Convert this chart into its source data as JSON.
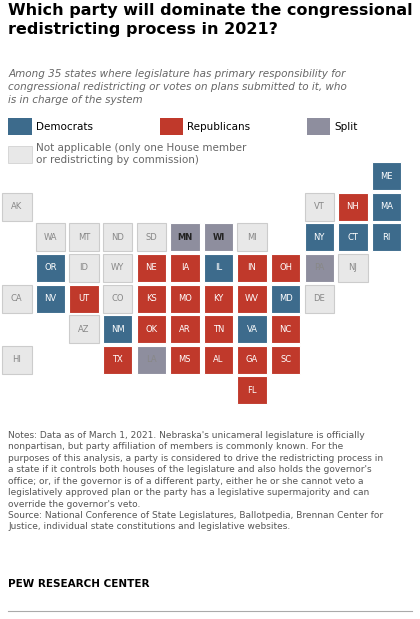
{
  "title": "Which party will dominate the congressional\nredistricting process in 2021?",
  "subtitle": "Among 35 states where legislature has primary responsibility for\ncongressional redistricting or votes on plans submitted to it, who\nis in charge of the system",
  "notes": "Notes: Data as of March 1, 2021. Nebraska's unicameral legislature is officially\nnonpartisan, but party affiliation of members is commonly known. For the\npurposes of this analysis, a party is considered to drive the redistricting process in\na state if it controls both houses of the legislature and also holds the governor's\noffice; or, if the governor is of a different party, either he or she cannot veto a\nlegislatively approved plan or the party has a legislative supermajority and can\noverride the governor's veto.\nSource: National Conference of State Legislatures, Ballotpedia, Brennan Center for\nJustice, individual state constitutions and legislative websites.",
  "source_label": "PEW RESEARCH CENTER",
  "colors": {
    "D": "#3d6b8c",
    "R": "#c0392b",
    "S": "#8e8e9e",
    "N": "#e8e8e8"
  },
  "states": [
    {
      "abbr": "AK",
      "col": 0,
      "row": 0,
      "party": "N"
    },
    {
      "abbr": "VT",
      "col": 9,
      "row": 0,
      "party": "N"
    },
    {
      "abbr": "NH",
      "col": 10,
      "row": 0,
      "party": "R"
    },
    {
      "abbr": "MA",
      "col": 11,
      "row": 0,
      "party": "D"
    },
    {
      "abbr": "ME",
      "col": 11,
      "row": -1,
      "party": "D"
    },
    {
      "abbr": "WA",
      "col": 1,
      "row": 1,
      "party": "N"
    },
    {
      "abbr": "MT",
      "col": 2,
      "row": 1,
      "party": "N"
    },
    {
      "abbr": "ND",
      "col": 3,
      "row": 1,
      "party": "N"
    },
    {
      "abbr": "SD",
      "col": 4,
      "row": 1,
      "party": "N"
    },
    {
      "abbr": "MN",
      "col": 5,
      "row": 1,
      "party": "S"
    },
    {
      "abbr": "WI",
      "col": 6,
      "row": 1,
      "party": "S"
    },
    {
      "abbr": "MI",
      "col": 7,
      "row": 1,
      "party": "N"
    },
    {
      "abbr": "NY",
      "col": 9,
      "row": 1,
      "party": "D"
    },
    {
      "abbr": "CT",
      "col": 10,
      "row": 1,
      "party": "D"
    },
    {
      "abbr": "RI",
      "col": 11,
      "row": 1,
      "party": "D"
    },
    {
      "abbr": "OR",
      "col": 1,
      "row": 2,
      "party": "D"
    },
    {
      "abbr": "ID",
      "col": 2,
      "row": 2,
      "party": "N"
    },
    {
      "abbr": "WY",
      "col": 3,
      "row": 2,
      "party": "N"
    },
    {
      "abbr": "NE",
      "col": 4,
      "row": 2,
      "party": "R"
    },
    {
      "abbr": "IA",
      "col": 5,
      "row": 2,
      "party": "R"
    },
    {
      "abbr": "IL",
      "col": 6,
      "row": 2,
      "party": "D"
    },
    {
      "abbr": "IN",
      "col": 7,
      "row": 2,
      "party": "R"
    },
    {
      "abbr": "OH",
      "col": 8,
      "row": 2,
      "party": "R"
    },
    {
      "abbr": "PA",
      "col": 9,
      "row": 2,
      "party": "S"
    },
    {
      "abbr": "NJ",
      "col": 10,
      "row": 2,
      "party": "N"
    },
    {
      "abbr": "CA",
      "col": 0,
      "row": 3,
      "party": "N"
    },
    {
      "abbr": "NV",
      "col": 1,
      "row": 3,
      "party": "D"
    },
    {
      "abbr": "UT",
      "col": 2,
      "row": 3,
      "party": "R"
    },
    {
      "abbr": "CO",
      "col": 3,
      "row": 3,
      "party": "N"
    },
    {
      "abbr": "KS",
      "col": 4,
      "row": 3,
      "party": "R"
    },
    {
      "abbr": "MO",
      "col": 5,
      "row": 3,
      "party": "R"
    },
    {
      "abbr": "KY",
      "col": 6,
      "row": 3,
      "party": "R"
    },
    {
      "abbr": "WV",
      "col": 7,
      "row": 3,
      "party": "R"
    },
    {
      "abbr": "MD",
      "col": 8,
      "row": 3,
      "party": "D"
    },
    {
      "abbr": "DE",
      "col": 9,
      "row": 3,
      "party": "N"
    },
    {
      "abbr": "AZ",
      "col": 2,
      "row": 4,
      "party": "N"
    },
    {
      "abbr": "NM",
      "col": 3,
      "row": 4,
      "party": "D"
    },
    {
      "abbr": "OK",
      "col": 4,
      "row": 4,
      "party": "R"
    },
    {
      "abbr": "AR",
      "col": 5,
      "row": 4,
      "party": "R"
    },
    {
      "abbr": "TN",
      "col": 6,
      "row": 4,
      "party": "R"
    },
    {
      "abbr": "VA",
      "col": 7,
      "row": 4,
      "party": "D"
    },
    {
      "abbr": "NC",
      "col": 8,
      "row": 4,
      "party": "R"
    },
    {
      "abbr": "HI",
      "col": 0,
      "row": 5,
      "party": "N"
    },
    {
      "abbr": "TX",
      "col": 3,
      "row": 5,
      "party": "R"
    },
    {
      "abbr": "LA",
      "col": 4,
      "row": 5,
      "party": "S"
    },
    {
      "abbr": "MS",
      "col": 5,
      "row": 5,
      "party": "R"
    },
    {
      "abbr": "AL",
      "col": 6,
      "row": 5,
      "party": "R"
    },
    {
      "abbr": "GA",
      "col": 7,
      "row": 5,
      "party": "R"
    },
    {
      "abbr": "SC",
      "col": 8,
      "row": 5,
      "party": "R"
    },
    {
      "abbr": "FL",
      "col": 7,
      "row": 6,
      "party": "R"
    }
  ]
}
